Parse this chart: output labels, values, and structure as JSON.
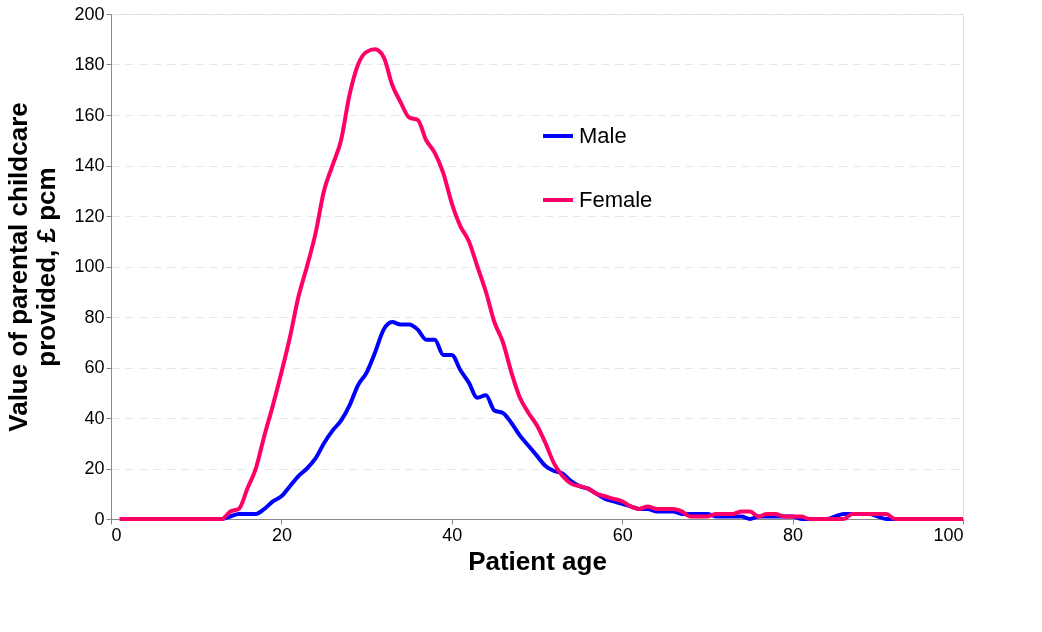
{
  "chart_data": {
    "type": "line",
    "xlabel": "Patient age",
    "ylabel": "Value of parental childcare provided, £ pcm",
    "x": [
      1,
      2,
      3,
      4,
      5,
      6,
      7,
      8,
      9,
      10,
      11,
      12,
      13,
      14,
      15,
      16,
      17,
      18,
      19,
      20,
      21,
      22,
      23,
      24,
      25,
      26,
      27,
      28,
      29,
      30,
      31,
      32,
      33,
      34,
      35,
      36,
      37,
      38,
      39,
      40,
      41,
      42,
      43,
      44,
      45,
      46,
      47,
      48,
      49,
      50,
      51,
      52,
      53,
      54,
      55,
      56,
      57,
      58,
      59,
      60,
      61,
      62,
      63,
      64,
      65,
      66,
      67,
      68,
      69,
      70,
      71,
      72,
      73,
      74,
      75,
      76,
      77,
      78,
      79,
      80,
      81,
      82,
      83,
      84,
      85,
      86,
      87,
      88,
      89,
      90,
      91,
      92,
      93,
      94,
      95,
      96,
      97,
      98,
      99,
      100
    ],
    "series": [
      {
        "name": "Male",
        "color": "#0000ff",
        "values": [
          null,
          null,
          null,
          null,
          null,
          null,
          null,
          null,
          null,
          null,
          null,
          0,
          0,
          1,
          2,
          2,
          2,
          4,
          7,
          9,
          13,
          17,
          20,
          24,
          30,
          35,
          39,
          45,
          53,
          58,
          66,
          75,
          78,
          77,
          77,
          75,
          71,
          71,
          65,
          65,
          59,
          54,
          48,
          49,
          43,
          42,
          38,
          33,
          29,
          25,
          21,
          19,
          18,
          15,
          13,
          12,
          10,
          8,
          7,
          6,
          5,
          4,
          4,
          3,
          3,
          3,
          2,
          2,
          2,
          2,
          1,
          1,
          1,
          1,
          0,
          1,
          1,
          1,
          1,
          1,
          0,
          0,
          0,
          0,
          1,
          2,
          2,
          2,
          2,
          1,
          0,
          0,
          0,
          null,
          null,
          null,
          null,
          null,
          null,
          null
        ]
      },
      {
        "name": "Female",
        "color": "#ff0066",
        "values": [
          0,
          0,
          0,
          0,
          0,
          0,
          0,
          0,
          0,
          0,
          0,
          0,
          0,
          3,
          4,
          12,
          20,
          33,
          45,
          58,
          72,
          88,
          100,
          113,
          130,
          140,
          150,
          168,
          180,
          185,
          186,
          183,
          172,
          165,
          159,
          158,
          150,
          145,
          137,
          125,
          116,
          110,
          100,
          90,
          78,
          70,
          58,
          48,
          42,
          37,
          30,
          22,
          17,
          14,
          13,
          12,
          10,
          9,
          8,
          7,
          5,
          4,
          5,
          4,
          4,
          4,
          3,
          1,
          1,
          1,
          2,
          2,
          2,
          3,
          3,
          1,
          2,
          2,
          1,
          1,
          1,
          0,
          0,
          0,
          0,
          0,
          2,
          2,
          2,
          2,
          2,
          0,
          0,
          0,
          0,
          0,
          0,
          0,
          0,
          0
        ]
      }
    ],
    "xlim": [
      0,
      100
    ],
    "xticks": [
      0,
      20,
      40,
      60,
      80,
      100
    ],
    "ylim": [
      0,
      200
    ],
    "yticks": [
      0,
      20,
      40,
      60,
      80,
      100,
      120,
      140,
      160,
      180,
      200
    ],
    "grid": "y",
    "legend": "top right",
    "marker": "none",
    "line_style": "solid"
  }
}
